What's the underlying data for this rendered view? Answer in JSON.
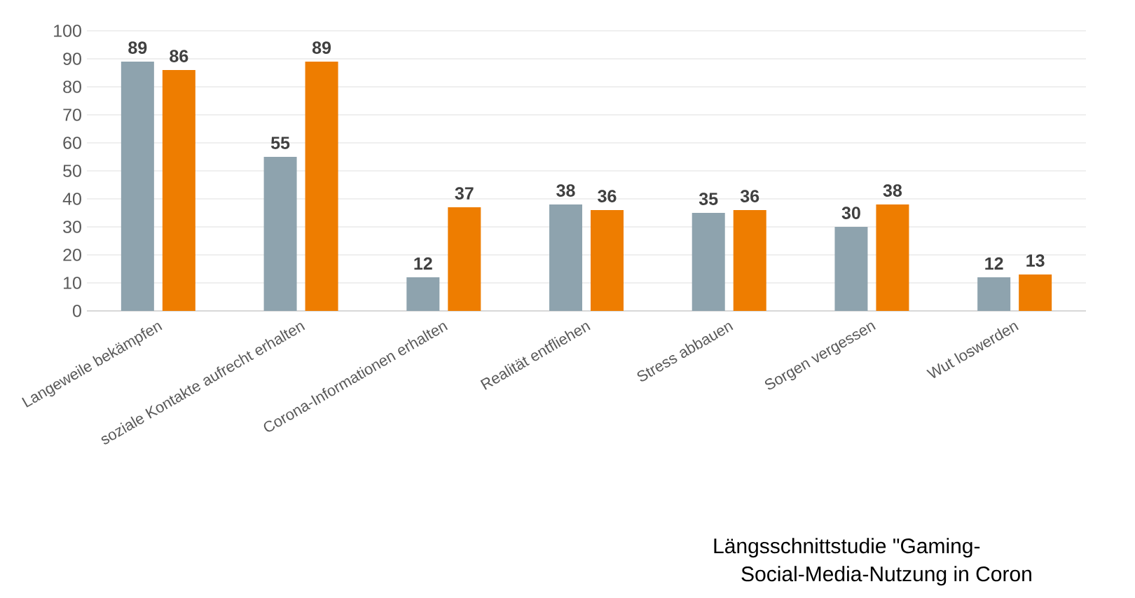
{
  "chart_data": {
    "type": "bar",
    "categories": [
      "Langeweile bekämpfen",
      "soziale Kontakte aufrecht erhalten",
      "Corona-Informationen erhalten",
      "Realität entfliehen",
      "Stress abbauen",
      "Sorgen vergessen",
      "Wut loswerden"
    ],
    "series": [
      {
        "color": "#8ea3ae",
        "values": [
          89,
          55,
          12,
          38,
          35,
          30,
          12
        ]
      },
      {
        "color": "#ee7d00",
        "values": [
          86,
          89,
          37,
          36,
          36,
          38,
          13
        ]
      }
    ],
    "ylim": [
      0,
      100
    ],
    "yticks": [
      0,
      10,
      20,
      30,
      40,
      50,
      60,
      70,
      80,
      90,
      100
    ],
    "grid": "y",
    "data_labels": true,
    "legend": false,
    "annotations": [
      "Längsschnittstudie \"Gaming-",
      "Social-Media-Nutzung in Coron"
    ]
  }
}
